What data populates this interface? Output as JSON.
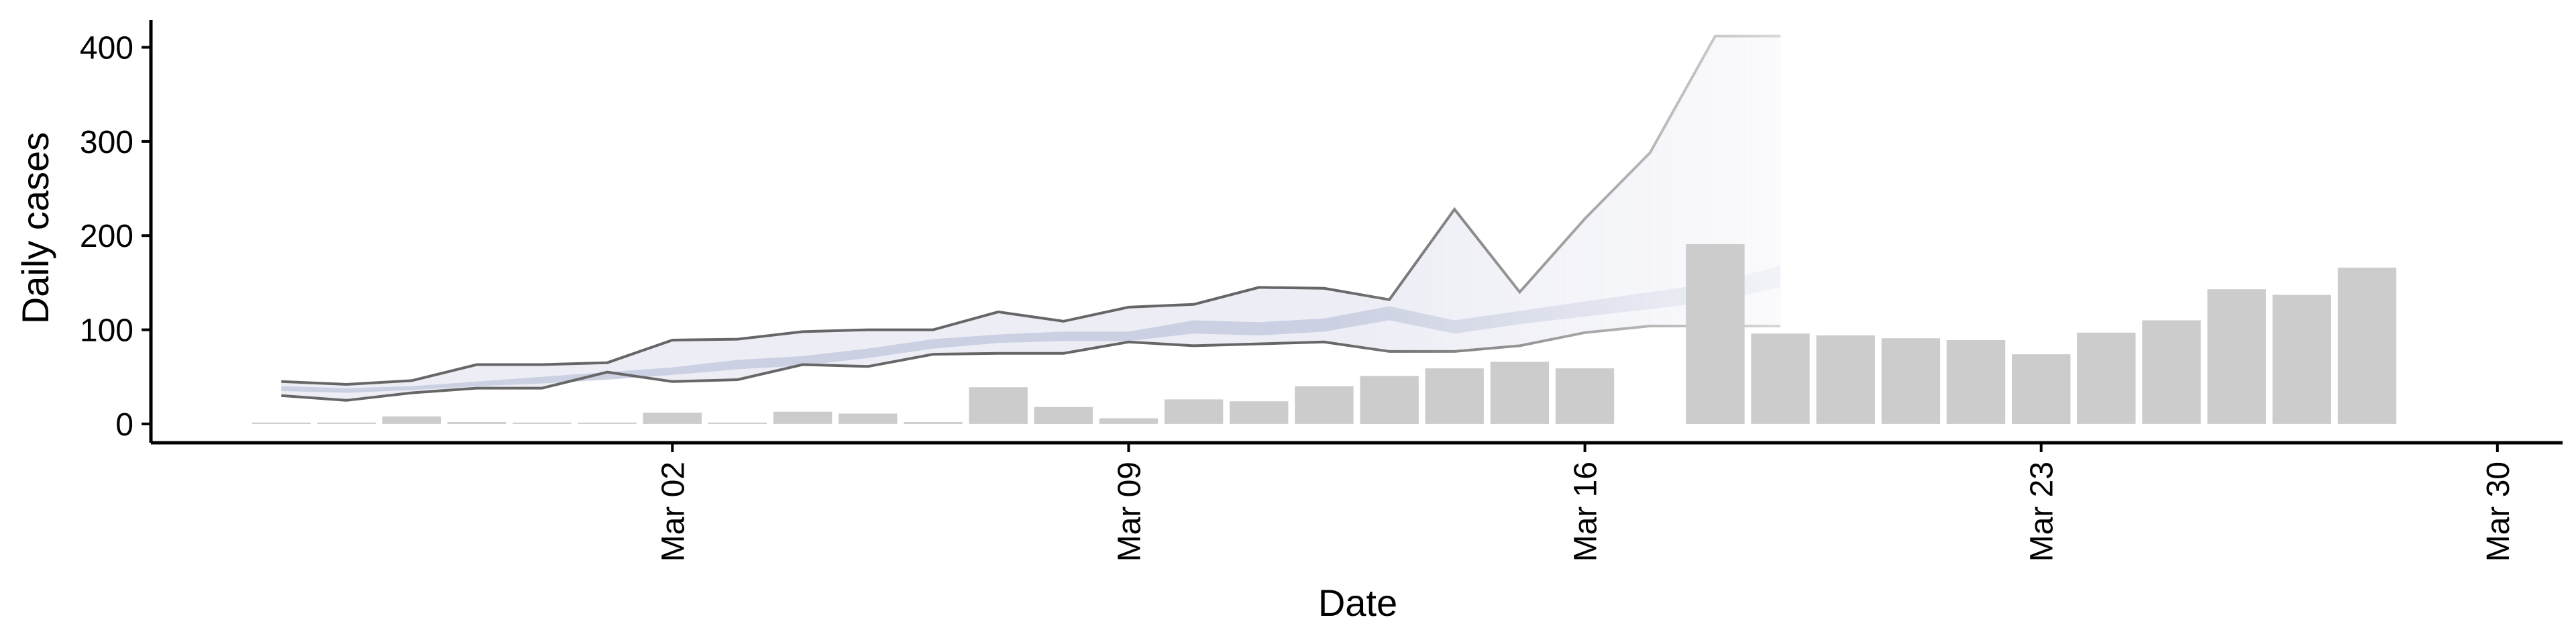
{
  "chart_data": {
    "type": "bar",
    "title": "",
    "xlabel": "Date",
    "ylabel": "Daily cases",
    "x_type": "date",
    "xlim": [
      "2020-02-23",
      "2020-03-31"
    ],
    "ylim": [
      -20,
      436
    ],
    "y_ticks": [
      0,
      100,
      200,
      300,
      400
    ],
    "x_ticks": [
      {
        "date": "2020-03-02",
        "label": "Mar 02"
      },
      {
        "date": "2020-03-09",
        "label": "Mar 09"
      },
      {
        "date": "2020-03-16",
        "label": "Mar 16"
      },
      {
        "date": "2020-03-23",
        "label": "Mar 23"
      },
      {
        "date": "2020-03-30",
        "label": "Mar 30"
      }
    ],
    "grid": false,
    "legend": "none",
    "colors": {
      "bars": "#cccccc",
      "band_outer": "#e5e7f1",
      "band_inner": "#c8cde0",
      "band_line": "#666666",
      "axis": "#000000"
    },
    "bars": [
      {
        "date": "2020-02-25",
        "value": 1
      },
      {
        "date": "2020-02-26",
        "value": 0
      },
      {
        "date": "2020-02-27",
        "value": 8
      },
      {
        "date": "2020-02-28",
        "value": 2
      },
      {
        "date": "2020-02-29",
        "value": 0
      },
      {
        "date": "2020-03-01",
        "value": 0
      },
      {
        "date": "2020-03-02",
        "value": 12
      },
      {
        "date": "2020-03-03",
        "value": 0
      },
      {
        "date": "2020-03-04",
        "value": 13
      },
      {
        "date": "2020-03-05",
        "value": 11
      },
      {
        "date": "2020-03-06",
        "value": 2
      },
      {
        "date": "2020-03-07",
        "value": 39
      },
      {
        "date": "2020-03-08",
        "value": 18
      },
      {
        "date": "2020-03-09",
        "value": 6
      },
      {
        "date": "2020-03-10",
        "value": 26
      },
      {
        "date": "2020-03-11",
        "value": 24
      },
      {
        "date": "2020-03-12",
        "value": 40
      },
      {
        "date": "2020-03-13",
        "value": 51
      },
      {
        "date": "2020-03-14",
        "value": 59
      },
      {
        "date": "2020-03-15",
        "value": 66
      },
      {
        "date": "2020-03-16",
        "value": 59
      },
      {
        "date": "2020-03-18",
        "value": 191
      },
      {
        "date": "2020-03-19",
        "value": 96
      },
      {
        "date": "2020-03-20",
        "value": 94
      },
      {
        "date": "2020-03-21",
        "value": 91
      },
      {
        "date": "2020-03-22",
        "value": 89
      },
      {
        "date": "2020-03-23",
        "value": 74
      },
      {
        "date": "2020-03-24",
        "value": 97
      },
      {
        "date": "2020-03-25",
        "value": 110
      },
      {
        "date": "2020-03-26",
        "value": 143
      },
      {
        "date": "2020-03-27",
        "value": 137
      },
      {
        "date": "2020-03-28",
        "value": 166
      }
    ],
    "bands": {
      "dates": [
        "2020-02-25",
        "2020-02-26",
        "2020-02-27",
        "2020-02-28",
        "2020-02-29",
        "2020-03-01",
        "2020-03-02",
        "2020-03-03",
        "2020-03-04",
        "2020-03-05",
        "2020-03-06",
        "2020-03-07",
        "2020-03-08",
        "2020-03-09",
        "2020-03-10",
        "2020-03-11",
        "2020-03-12",
        "2020-03-13",
        "2020-03-14",
        "2020-03-15",
        "2020-03-16",
        "2020-03-17",
        "2020-03-18",
        "2020-03-19"
      ],
      "outer_upper": [
        45,
        42,
        46,
        63,
        63,
        65,
        89,
        90,
        98,
        100,
        100,
        119,
        109,
        124,
        127,
        145,
        144,
        132,
        228,
        140,
        218,
        288,
        412,
        412
      ],
      "outer_lower": [
        30,
        25,
        33,
        38,
        38,
        55,
        45,
        47,
        63,
        61,
        74,
        75,
        75,
        87,
        83,
        85,
        87,
        77,
        77,
        83,
        97,
        104,
        104,
        104
      ],
      "inner_upper": [
        40,
        38,
        40,
        45,
        50,
        55,
        60,
        68,
        72,
        80,
        90,
        95,
        98,
        98,
        110,
        108,
        112,
        125,
        110,
        120,
        130,
        140,
        150,
        168
      ],
      "inner_lower": [
        35,
        33,
        36,
        40,
        43,
        47,
        52,
        58,
        62,
        70,
        80,
        86,
        88,
        88,
        96,
        94,
        98,
        110,
        96,
        106,
        114,
        122,
        130,
        145
      ]
    }
  }
}
